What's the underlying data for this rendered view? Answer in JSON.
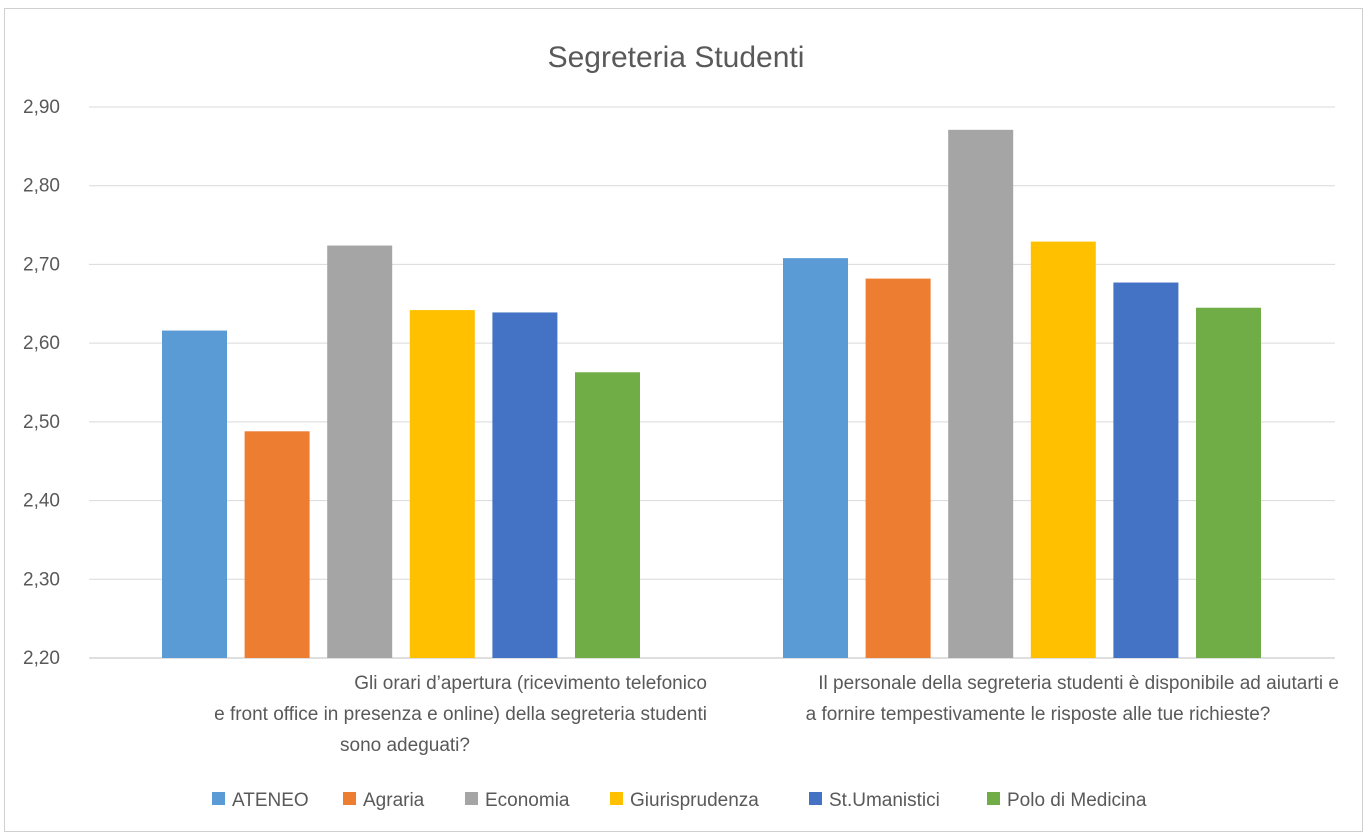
{
  "chart_data": {
    "type": "bar",
    "title": "Segreteria Studenti",
    "categories": [
      [
        "Gli orari d’apertura (ricevimento telefonico",
        "e front office in presenza e online) della segreteria studenti",
        "sono adeguati?"
      ],
      [
        "Il personale della segreteria studenti è disponibile ad aiutarti e",
        "a fornire tempestivamente le risposte alle tue richieste?"
      ]
    ],
    "series": [
      {
        "name": "ATENEO",
        "color": "#5B9BD5",
        "values": [
          2.616,
          2.708
        ]
      },
      {
        "name": "Agraria",
        "color": "#ED7D31",
        "values": [
          2.488,
          2.682
        ]
      },
      {
        "name": "Economia",
        "color": "#A5A5A5",
        "values": [
          2.724,
          2.871
        ]
      },
      {
        "name": "Giurisprudenza",
        "color": "#FFC000",
        "values": [
          2.642,
          2.729
        ]
      },
      {
        "name": "St.Umanistici",
        "color": "#4472C4",
        "values": [
          2.639,
          2.677
        ]
      },
      {
        "name": "Polo di Medicina",
        "color": "#70AD47",
        "values": [
          2.563,
          2.645
        ]
      }
    ],
    "ylim": [
      2.2,
      2.9
    ],
    "yticks": [
      "2,20",
      "2,30",
      "2,40",
      "2,50",
      "2,60",
      "2,70",
      "2,80",
      "2,90"
    ],
    "grid": true,
    "legend": "bottom"
  }
}
